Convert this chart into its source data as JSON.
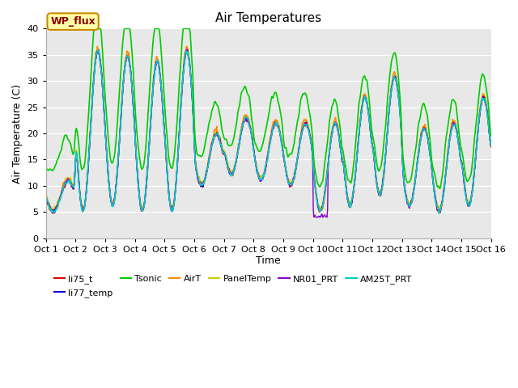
{
  "title": "Air Temperatures",
  "ylabel": "Air Temperature (C)",
  "xlabel": "Time",
  "ylim": [
    0,
    40
  ],
  "yticks": [
    0,
    5,
    10,
    15,
    20,
    25,
    30,
    35,
    40
  ],
  "xtick_labels": [
    "Oct 1",
    "Oct 2",
    "Oct 3",
    "Oct 4",
    "Oct 5",
    "Oct 6",
    "Oct 7",
    "Oct 8",
    "Oct 9",
    "Oct 10",
    "Oct 11",
    "Oct 12",
    "Oct 13",
    "Oct 14",
    "Oct 15",
    "Oct 16"
  ],
  "series": [
    {
      "name": "li75_t",
      "color": "#dd0000",
      "lw": 1.0
    },
    {
      "name": "li77_temp",
      "color": "#0000dd",
      "lw": 1.0
    },
    {
      "name": "Tsonic",
      "color": "#00cc00",
      "lw": 1.2
    },
    {
      "name": "AirT",
      "color": "#ff8800",
      "lw": 1.0
    },
    {
      "name": "PanelTemp",
      "color": "#cccc00",
      "lw": 1.0
    },
    {
      "name": "NR01_PRT",
      "color": "#8800cc",
      "lw": 1.0
    },
    {
      "name": "AM25T_PRT",
      "color": "#00cccc",
      "lw": 1.2
    }
  ],
  "annotation_text": "WP_flux",
  "bg_color": "#e8e8e8",
  "fig_bg": "#ffffff",
  "title_fontsize": 11,
  "label_fontsize": 9,
  "tick_fontsize": 8,
  "legend_ncol": 6
}
